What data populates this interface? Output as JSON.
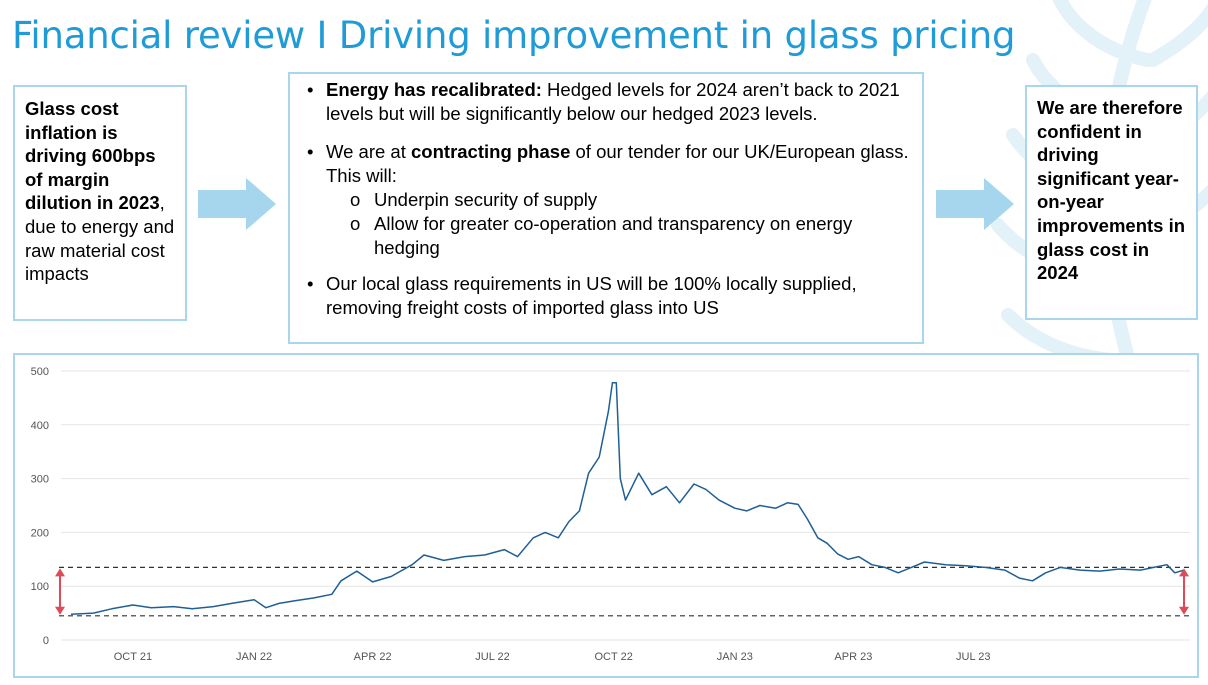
{
  "title": "Financial review I Driving improvement in glass pricing",
  "left_box": {
    "bold": "Glass cost inflation is driving 600bps of margin dilution in 2023",
    "rest": ", due to energy and raw material cost impacts"
  },
  "middle_box": {
    "bullet1_bold": "Energy has recalibrated:",
    "bullet1_rest": " Hedged levels for 2024 aren’t back to 2021 levels but will be significantly below our hedged 2023 levels.",
    "bullet2_pre": "We are at ",
    "bullet2_bold": "contracting phase",
    "bullet2_post": " of our tender for our UK/European glass. This will:",
    "sub1": "Underpin security of supply",
    "sub2": "Allow for greater co-operation and transparency on energy hedging",
    "bullet3": "Our local glass requirements in US will be 100% locally supplied, removing freight costs of imported glass into US"
  },
  "right_box": {
    "text": "We are therefore confident in driving significant year-on-year improvements in glass cost in 2024"
  },
  "colors": {
    "title": "#1f9bd7",
    "border": "#a9d6ea",
    "arrow": "#a6d6ee",
    "line": "#1f5f96",
    "range_arrow": "#e04a58",
    "grid": "#e6e6e6"
  },
  "chart_data": {
    "type": "line",
    "title": "",
    "xlabel": "",
    "ylabel": "",
    "ylim": [
      0,
      500
    ],
    "yticks": [
      0,
      100,
      200,
      300,
      400,
      500
    ],
    "xtick_labels": [
      "OCT 21",
      "JAN 22",
      "APR 22",
      "JUL 22",
      "OCT 22",
      "JAN 23",
      "APR 23",
      "JUL 23"
    ],
    "grid": "horizontal",
    "reference_lines": [
      135,
      45
    ],
    "series": [
      {
        "points": [
          [
            "2021-08-15",
            48
          ],
          [
            "2021-09-01",
            50
          ],
          [
            "2021-09-15",
            58
          ],
          [
            "2021-10-01",
            65
          ],
          [
            "2021-10-15",
            60
          ],
          [
            "2021-11-01",
            62
          ],
          [
            "2021-11-15",
            58
          ],
          [
            "2021-12-01",
            62
          ],
          [
            "2021-12-15",
            68
          ],
          [
            "2022-01-01",
            75
          ],
          [
            "2022-01-10",
            60
          ],
          [
            "2022-01-20",
            68
          ],
          [
            "2022-02-01",
            73
          ],
          [
            "2022-02-15",
            78
          ],
          [
            "2022-03-01",
            85
          ],
          [
            "2022-03-08",
            110
          ],
          [
            "2022-03-20",
            128
          ],
          [
            "2022-04-01",
            108
          ],
          [
            "2022-04-15",
            118
          ],
          [
            "2022-05-01",
            140
          ],
          [
            "2022-05-10",
            158
          ],
          [
            "2022-05-25",
            148
          ],
          [
            "2022-06-10",
            155
          ],
          [
            "2022-06-25",
            158
          ],
          [
            "2022-07-10",
            168
          ],
          [
            "2022-07-20",
            155
          ],
          [
            "2022-08-01",
            190
          ],
          [
            "2022-08-10",
            200
          ],
          [
            "2022-08-20",
            190
          ],
          [
            "2022-08-28",
            220
          ],
          [
            "2022-09-05",
            240
          ],
          [
            "2022-09-12",
            310
          ],
          [
            "2022-09-20",
            340
          ],
          [
            "2022-09-27",
            425
          ],
          [
            "2022-09-30",
            478
          ],
          [
            "2022-10-03",
            478
          ],
          [
            "2022-10-06",
            300
          ],
          [
            "2022-10-10",
            260
          ],
          [
            "2022-10-20",
            310
          ],
          [
            "2022-10-30",
            270
          ],
          [
            "2022-11-10",
            285
          ],
          [
            "2022-11-20",
            255
          ],
          [
            "2022-12-01",
            290
          ],
          [
            "2022-12-10",
            280
          ],
          [
            "2022-12-20",
            260
          ],
          [
            "2023-01-01",
            245
          ],
          [
            "2023-01-10",
            240
          ],
          [
            "2023-01-20",
            250
          ],
          [
            "2023-02-01",
            245
          ],
          [
            "2023-02-10",
            255
          ],
          [
            "2023-02-18",
            252
          ],
          [
            "2023-02-25",
            225
          ],
          [
            "2023-03-05",
            190
          ],
          [
            "2023-03-12",
            180
          ],
          [
            "2023-03-20",
            160
          ],
          [
            "2023-03-28",
            150
          ],
          [
            "2023-04-05",
            155
          ],
          [
            "2023-04-15",
            140
          ],
          [
            "2023-04-25",
            135
          ],
          [
            "2023-05-05",
            125
          ],
          [
            "2023-05-15",
            135
          ],
          [
            "2023-05-25",
            145
          ],
          [
            "2023-06-10",
            140
          ],
          [
            "2023-06-25",
            138
          ],
          [
            "2023-07-10",
            135
          ],
          [
            "2023-07-25",
            130
          ],
          [
            "2023-08-05",
            115
          ],
          [
            "2023-08-15",
            110
          ],
          [
            "2023-08-25",
            125
          ],
          [
            "2023-09-05",
            135
          ],
          [
            "2023-09-20",
            130
          ],
          [
            "2023-10-05",
            128
          ],
          [
            "2023-10-20",
            132
          ],
          [
            "2023-11-05",
            130
          ],
          [
            "2023-11-15",
            135
          ],
          [
            "2023-11-25",
            140
          ],
          [
            "2023-12-01",
            125
          ],
          [
            "2023-12-08",
            130
          ]
        ]
      }
    ]
  }
}
